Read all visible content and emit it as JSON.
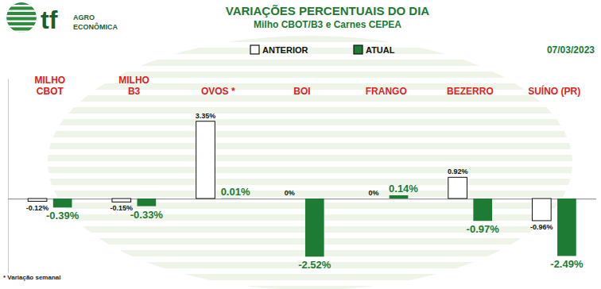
{
  "chart_data": {
    "type": "bar",
    "title": "VARIAÇÕES PERCENTUAIS DO DIA",
    "subtitle": "Milho CBOT/B3 e Carnes CEPEA",
    "annotations": [
      "07/03/2023",
      "* Variação semanal",
      "tf",
      "AGRO",
      "ECONÔMICA"
    ],
    "categories": [
      "MILHO\nCBOT",
      "MILHO\nB3",
      "OVOS *",
      "BOI",
      "FRANGO",
      "BEZERRO",
      "SUÍNO (PR)"
    ],
    "series": [
      {
        "name": "ANTERIOR",
        "color": "#ffffff",
        "values": [
          -0.12,
          -0.15,
          3.35,
          0,
          0,
          0.92,
          -0.96
        ],
        "value_labels": [
          "-0.12%",
          "-0.15%",
          "3.35%",
          "0%",
          "0%",
          "0.92%",
          "-0.96%"
        ]
      },
      {
        "name": "ATUAL",
        "color": "#1e7b34",
        "values": [
          -0.39,
          -0.33,
          0.01,
          -2.52,
          0.14,
          -0.97,
          -2.49
        ],
        "value_labels": [
          "-0.39%",
          "-0.33%",
          "0.01%",
          "-2.52%",
          "0.14%",
          "-0.97%",
          "-2.49%"
        ]
      }
    ],
    "ylim": [
      -3.2,
      5.2
    ],
    "yticks": [
      0
    ],
    "grid": true,
    "legend": "top",
    "data_labels": true,
    "tick_labels": "x"
  }
}
